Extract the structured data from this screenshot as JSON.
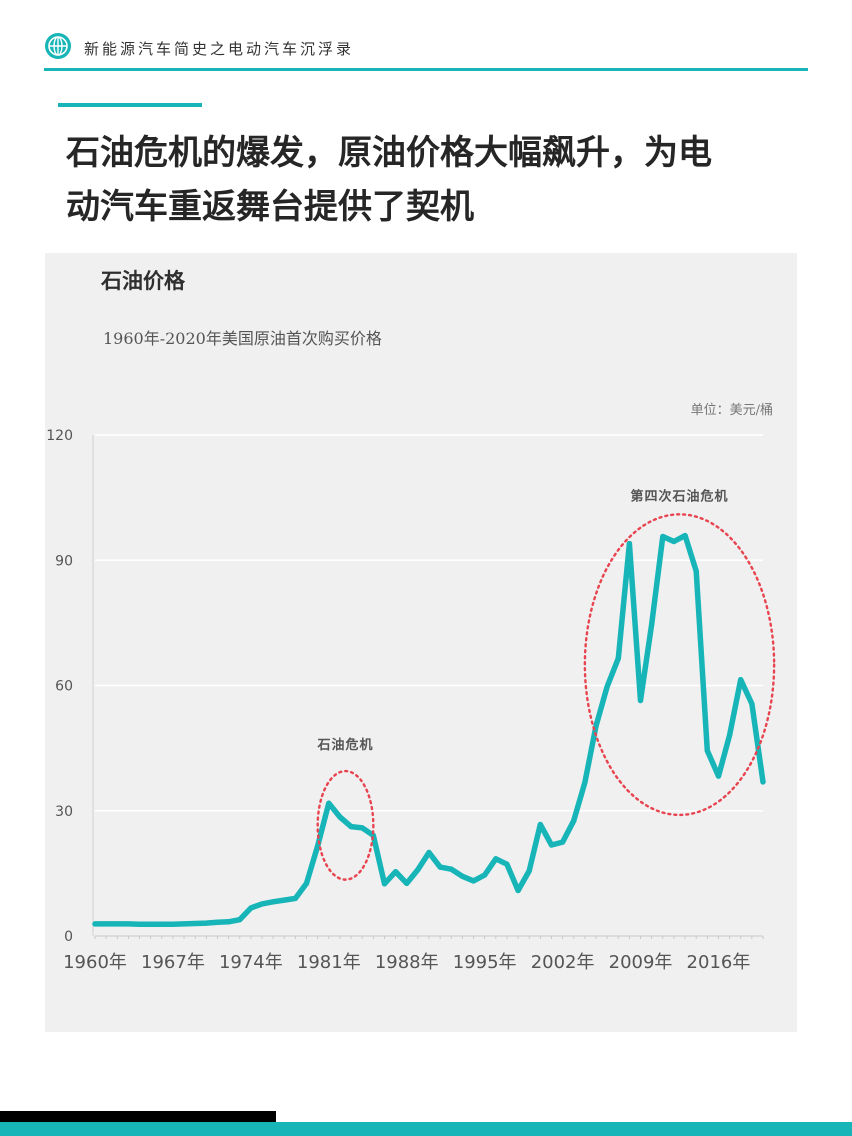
{
  "header": {
    "title": "新能源汽车简史之电动汽车沉浮录",
    "logo_icon": "globe-icon"
  },
  "main_title_line1": "石油危机的爆发，原油价格大幅飙升，为电",
  "main_title_line2": "动汽车重返舞台提供了契机",
  "colors": {
    "accent": "#17b5b8",
    "annotation": "#e84450",
    "panel": "#f0f0f0"
  },
  "chart_data": {
    "type": "line",
    "title": "石油价格",
    "subtitle": "1960年-2020年美国原油首次购买价格",
    "unit": "单位：美元/桶",
    "ylim": [
      0,
      120
    ],
    "yticks": [
      "0",
      "30",
      "60",
      "90",
      "120"
    ],
    "xlim": [
      1960,
      2020
    ],
    "xticks": [
      "1960年",
      "1967年",
      "1974年",
      "1981年",
      "1988年",
      "1995年",
      "2002年",
      "2009年",
      "2016年"
    ],
    "grid": true,
    "series": [
      {
        "x": [
          1960,
          1961,
          1962,
          1963,
          1964,
          1965,
          1966,
          1967,
          1968,
          1969,
          1970,
          1971,
          1972,
          1973,
          1974,
          1975,
          1976,
          1977,
          1978,
          1979,
          1980,
          1981,
          1982,
          1983,
          1984,
          1985,
          1986,
          1987,
          1988,
          1989,
          1990,
          1991,
          1992,
          1993,
          1994,
          1995,
          1996,
          1997,
          1998,
          1999,
          2000,
          2001,
          2002,
          2003,
          2004,
          2005,
          2006,
          2007,
          2008,
          2009,
          2010,
          2011,
          2012,
          2013,
          2014,
          2015,
          2016,
          2017,
          2018,
          2019,
          2020
        ],
        "values": [
          2.9,
          2.9,
          2.9,
          2.9,
          2.8,
          2.8,
          2.8,
          2.8,
          2.9,
          3.0,
          3.1,
          3.3,
          3.4,
          3.9,
          6.7,
          7.7,
          8.2,
          8.6,
          9.0,
          12.6,
          21.6,
          31.8,
          28.5,
          26.2,
          25.9,
          24.1,
          12.5,
          15.4,
          12.6,
          15.9,
          20.0,
          16.5,
          16.0,
          14.3,
          13.2,
          14.6,
          18.5,
          17.2,
          10.9,
          15.6,
          26.7,
          21.8,
          22.5,
          27.6,
          36.8,
          50.3,
          59.7,
          66.5,
          94.0,
          56.4,
          74.7,
          95.7,
          94.5,
          95.9,
          87.4,
          44.4,
          38.3,
          48.1,
          61.4,
          55.6,
          36.9
        ]
      }
    ],
    "annotations": [
      {
        "label": "石油危机",
        "x_center": 1982.5,
        "y_center": 26.5,
        "x_radius": 2.5,
        "y_radius": 13
      },
      {
        "label": "第四次石油危机",
        "x_center": 2012.5,
        "y_center": 65,
        "x_radius": 8.5,
        "y_radius": 36
      }
    ]
  }
}
